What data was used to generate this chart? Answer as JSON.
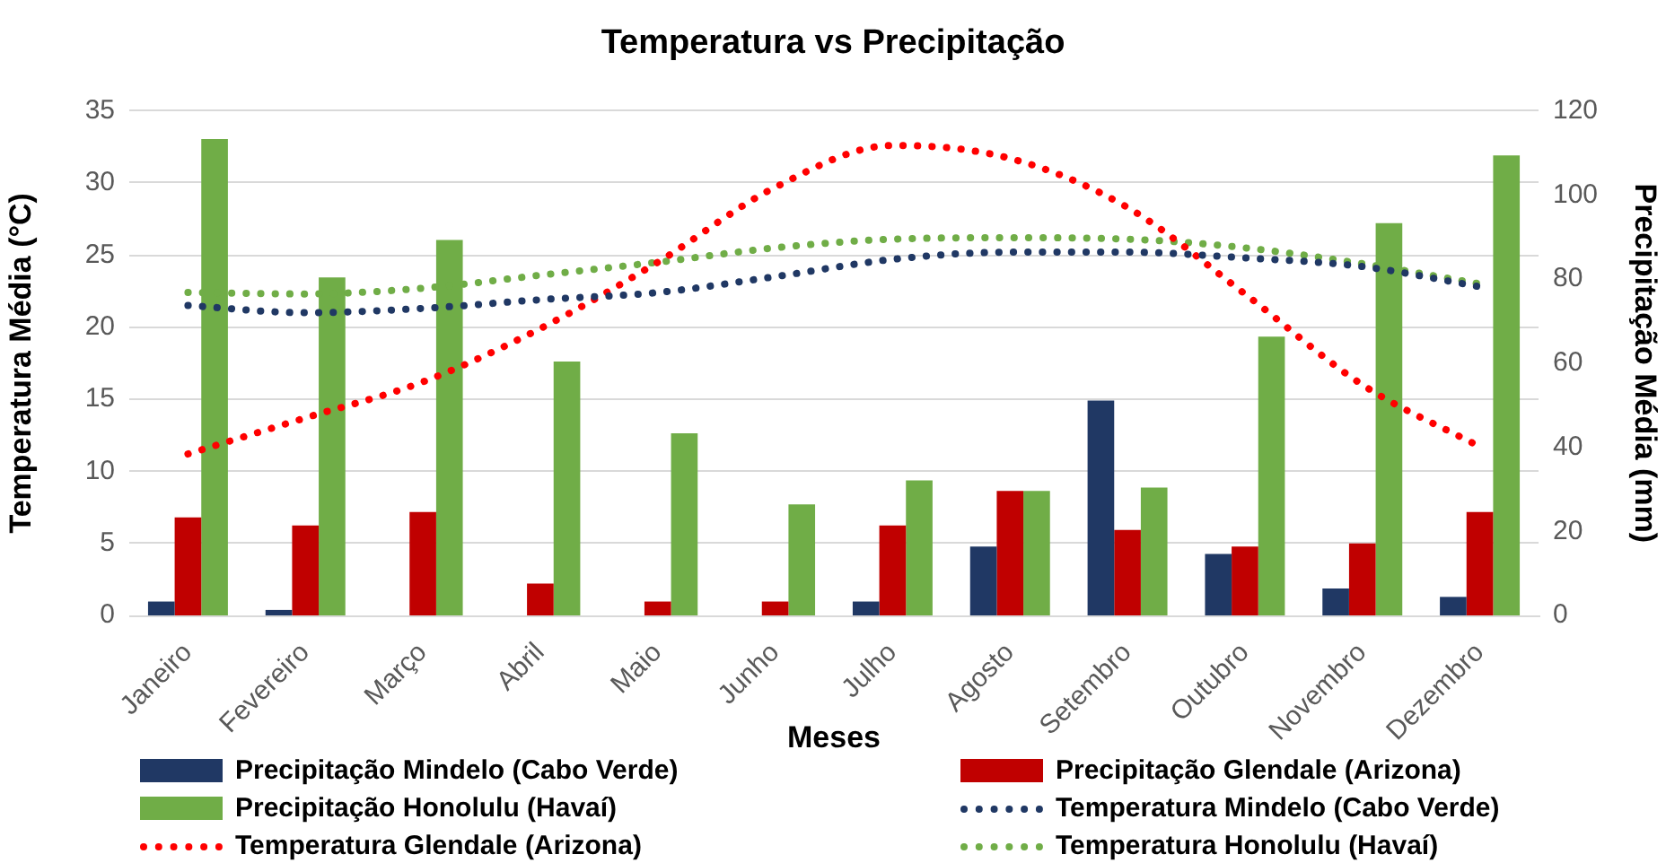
{
  "chart_data": {
    "type": "bar",
    "title": "Temperatura vs Precipitação",
    "xlabel": "Meses",
    "ylabel": "Temperatura Média (°C)",
    "y2label": "Precipitação Média (mm)",
    "categories": [
      "Janeiro",
      "Fevereiro",
      "Março",
      "Abril",
      "Maio",
      "Junho",
      "Julho",
      "Agosto",
      "Setembro",
      "Outubro",
      "Novembro",
      "Dezembro"
    ],
    "series": [
      {
        "name": "Precipitação Mindelo (Cabo Verde)",
        "color": "#203864",
        "axis": "y2",
        "values": [
          3.3,
          1.3,
          0,
          0,
          0,
          0,
          3.3,
          16.4,
          51.1,
          14.6,
          6.4,
          4.4
        ]
      },
      {
        "name": "Precipitação Glendale (Arizona)",
        "color": "#c00000",
        "axis": "y2",
        "values": [
          23.3,
          21.4,
          24.6,
          7.6,
          3.3,
          3.3,
          21.4,
          29.6,
          20.3,
          16.4,
          17.1,
          24.6
        ]
      },
      {
        "name": "Precipitação Honolulu (Havaí)",
        "color": "#70ad47",
        "axis": "y2",
        "values": [
          113.3,
          80.4,
          89.3,
          60.4,
          43.3,
          26.4,
          32.1,
          29.6,
          30.4,
          66.3,
          93.3,
          109.4
        ]
      },
      {
        "name": "Temperatura Mindelo (Cabo Verde)",
        "type": "line",
        "color": "#203864",
        "values": [
          21.5,
          21.0,
          21.3,
          21.9,
          22.4,
          23.5,
          24.7,
          25.2,
          25.2,
          24.8,
          24.2,
          22.8
        ]
      },
      {
        "name": "Temperatura Glendale (Arizona)",
        "type": "line",
        "color": "#ff0000",
        "values": [
          11.2,
          13.7,
          16.2,
          19.9,
          24.5,
          29.7,
          32.6,
          31.7,
          28.3,
          22.3,
          16.0,
          11.7
        ]
      },
      {
        "name": "Temperatura Honolulu (Havaí)",
        "type": "line",
        "color": "#70ad47",
        "values": [
          22.4,
          22.3,
          22.7,
          23.6,
          24.5,
          25.5,
          26.1,
          26.2,
          26.1,
          25.5,
          24.4,
          23.0
        ]
      }
    ],
    "ylim": [
      0,
      35
    ],
    "yticks": [
      0,
      5,
      10,
      15,
      20,
      25,
      30,
      35
    ],
    "y2lim": [
      0,
      120
    ],
    "y2ticks": [
      0,
      20,
      40,
      60,
      80,
      100,
      120
    ],
    "grid": "y",
    "legend": "bottom",
    "marker": "none",
    "line_style": "dotted"
  }
}
